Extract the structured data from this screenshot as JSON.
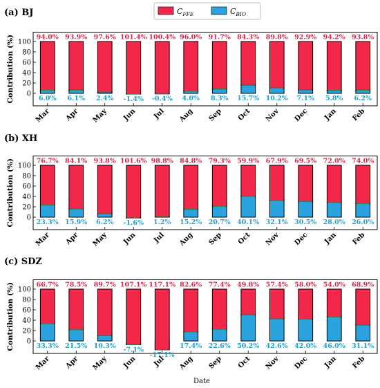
{
  "colors": {
    "ffe": "#f2274a",
    "bio": "#2ba3df",
    "ffe_label": "#d9254a",
    "bio_label": "#1e9fd0",
    "ffe_border": "#2e8b57"
  },
  "legend": {
    "ffe_main": "C",
    "ffe_sub": "FFE",
    "bio_main": "C",
    "bio_sub": "BIO"
  },
  "xlabel": "Date",
  "chart_data": [
    {
      "type": "bar",
      "stacked": true,
      "title": "(a) BJ",
      "ylabel": "Contribution (%)",
      "yticks": [
        0,
        20,
        40,
        60,
        80,
        100
      ],
      "ylim": [
        -24,
        118
      ],
      "categories": [
        "Mar",
        "Apr",
        "May",
        "Jun",
        "Jul",
        "Aug",
        "Sep",
        "Oct",
        "Nov",
        "Dec",
        "Jan",
        "Feb"
      ],
      "series": [
        {
          "name": "CFFE",
          "values": [
            94.0,
            93.9,
            97.6,
            101.4,
            100.4,
            96.0,
            91.7,
            84.3,
            89.8,
            92.9,
            94.2,
            93.8
          ]
        },
        {
          "name": "CBIO",
          "values": [
            6.0,
            6.1,
            2.4,
            -1.4,
            -0.4,
            4.0,
            8.3,
            15.7,
            10.2,
            7.1,
            5.8,
            6.2
          ]
        }
      ],
      "ffe_labels": [
        "94.0%",
        "93.9%",
        "97.6%",
        "101.4%",
        "100.4%",
        "96.0%",
        "91.7%",
        "84.3%",
        "89.8%",
        "92.9%",
        "94.2%",
        "93.8%"
      ],
      "bio_labels": [
        "6.0%",
        "6.1%",
        "2.4%",
        "-1.4%",
        "-0.4%",
        "4.0%",
        "8.3%",
        "15.7%",
        "10.2%",
        "7.1%",
        "5.8%",
        "6.2%"
      ]
    },
    {
      "type": "bar",
      "stacked": true,
      "title": "(b) XH",
      "ylabel": "Contribution (%)",
      "yticks": [
        0,
        20,
        40,
        60,
        80,
        100
      ],
      "ylim": [
        -24,
        118
      ],
      "categories": [
        "Mar",
        "Apr",
        "May",
        "Jun",
        "Jul",
        "Aug",
        "Sep",
        "Oct",
        "Nov",
        "Dec",
        "Jan",
        "Feb"
      ],
      "series": [
        {
          "name": "CFFE",
          "values": [
            76.7,
            84.1,
            93.8,
            101.6,
            98.8,
            84.8,
            79.3,
            59.9,
            67.9,
            69.5,
            72.0,
            74.0
          ]
        },
        {
          "name": "CBIO",
          "values": [
            23.3,
            15.9,
            6.2,
            -1.6,
            1.2,
            15.2,
            20.7,
            40.1,
            32.1,
            30.5,
            28.0,
            26.0
          ]
        }
      ],
      "ffe_labels": [
        "76.7%",
        "84.1%",
        "93.8%",
        "101.6%",
        "98.8%",
        "84.8%",
        "79.3%",
        "59.9%",
        "67.9%",
        "69.5%",
        "72.0%",
        "74.0%"
      ],
      "bio_labels": [
        "23.3%",
        "15.9%",
        "6.2%",
        "-1.6%",
        "1.2%",
        "15.2%",
        "20.7%",
        "40.1%",
        "32.1%",
        "30.5%",
        "28.0%",
        "26.0%"
      ]
    },
    {
      "type": "bar",
      "stacked": true,
      "title": "(c) SDZ",
      "ylabel": "Contribution (%)",
      "yticks": [
        0,
        20,
        40,
        60,
        80,
        100
      ],
      "ylim": [
        -24,
        118
      ],
      "categories": [
        "Mar",
        "Apr",
        "May",
        "Jun",
        "Jul",
        "Aug",
        "Sep",
        "Oct",
        "Nov",
        "Dec",
        "Jan",
        "Feb"
      ],
      "series": [
        {
          "name": "CFFE",
          "values": [
            66.7,
            78.5,
            89.7,
            107.1,
            117.1,
            82.6,
            77.4,
            49.8,
            57.4,
            58.0,
            54.0,
            68.9
          ]
        },
        {
          "name": "CBIO",
          "values": [
            33.3,
            21.5,
            10.3,
            -7.1,
            -17.1,
            17.4,
            22.6,
            50.2,
            42.6,
            42.0,
            46.0,
            31.1
          ]
        }
      ],
      "ffe_labels": [
        "66.7%",
        "78.5%",
        "89.7%",
        "107.1%",
        "117.1%",
        "82.6%",
        "77.4%",
        "49.8%",
        "57.4%",
        "58.0%",
        "54.0%",
        "68.9%"
      ],
      "bio_labels": [
        "33.3%",
        "21.5%",
        "10.3%",
        "-7.1%",
        "-17.1%",
        "17.4%",
        "22.6%",
        "50.2%",
        "42.6%",
        "42.0%",
        "46.0%",
        "31.1%"
      ]
    }
  ]
}
